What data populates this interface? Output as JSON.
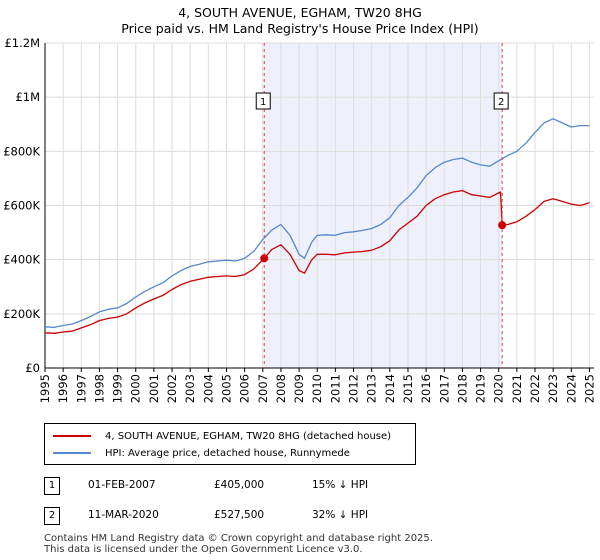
{
  "title_line1": "4, SOUTH AVENUE, EGHAM, TW20 8HG",
  "title_line2": "Price paid vs. HM Land Registry's House Price Index (HPI)",
  "chart_data": {
    "type": "line",
    "ylim": [
      0,
      1200000
    ],
    "xlim": [
      1995,
      2025.25
    ],
    "y_ticks": [
      0,
      200000,
      400000,
      600000,
      800000,
      1000000,
      1200000
    ],
    "y_tick_labels": [
      "£0",
      "£200K",
      "£400K",
      "£600K",
      "£800K",
      "£1M",
      "£1.2M"
    ],
    "x_ticks": [
      "1995",
      "1996",
      "1997",
      "1998",
      "1999",
      "2000",
      "2001",
      "2002",
      "2003",
      "2004",
      "2005",
      "2006",
      "2007",
      "2008",
      "2009",
      "2010",
      "2011",
      "2012",
      "2013",
      "2014",
      "2015",
      "2016",
      "2017",
      "2018",
      "2019",
      "2020",
      "2021",
      "2022",
      "2023",
      "2024",
      "2025"
    ],
    "grid": true,
    "shaded_region": [
      2007.08,
      2020.19
    ],
    "series": [
      {
        "name": "4, SOUTH AVENUE, EGHAM, TW20 8HG (detached house)",
        "color": "#cc0000",
        "x": [
          1995,
          1995.5,
          1996,
          1996.5,
          1997,
          1997.5,
          1998,
          1998.5,
          1999,
          1999.5,
          2000,
          2000.5,
          2001,
          2001.5,
          2002,
          2002.5,
          2003,
          2003.5,
          2004,
          2004.5,
          2005,
          2005.5,
          2006,
          2006.5,
          2007.08,
          2007.5,
          2008,
          2008.5,
          2009,
          2009.3,
          2009.7,
          2010,
          2010.5,
          2011,
          2011.5,
          2012,
          2012.5,
          2013,
          2013.5,
          2014,
          2014.5,
          2015,
          2015.5,
          2016,
          2016.5,
          2017,
          2017.5,
          2018,
          2018.5,
          2019,
          2019.5,
          2020.1,
          2020.19,
          2020.5,
          2021,
          2021.5,
          2022,
          2022.5,
          2023,
          2023.5,
          2024,
          2024.5,
          2025
        ],
        "y": [
          130000,
          128000,
          133000,
          136000,
          148000,
          160000,
          175000,
          183000,
          188000,
          200000,
          222000,
          240000,
          255000,
          268000,
          290000,
          308000,
          320000,
          328000,
          335000,
          338000,
          340000,
          338000,
          345000,
          365000,
          405000,
          438000,
          455000,
          420000,
          360000,
          350000,
          400000,
          420000,
          420000,
          418000,
          425000,
          428000,
          430000,
          435000,
          448000,
          470000,
          510000,
          535000,
          560000,
          600000,
          625000,
          640000,
          650000,
          655000,
          640000,
          635000,
          630000,
          650000,
          527500,
          530000,
          540000,
          560000,
          585000,
          615000,
          625000,
          615000,
          605000,
          600000,
          610000
        ]
      },
      {
        "name": "HPI: Average price, detached house, Runnymede",
        "color": "#5588cc",
        "x": [
          1995,
          1995.5,
          1996,
          1996.5,
          1997,
          1997.5,
          1998,
          1998.5,
          1999,
          1999.5,
          2000,
          2000.5,
          2001,
          2001.5,
          2002,
          2002.5,
          2003,
          2003.5,
          2004,
          2004.5,
          2005,
          2005.5,
          2006,
          2006.5,
          2007,
          2007.5,
          2008,
          2008.5,
          2009,
          2009.3,
          2009.7,
          2010,
          2010.5,
          2011,
          2011.5,
          2012,
          2012.5,
          2013,
          2013.5,
          2014,
          2014.5,
          2015,
          2015.5,
          2016,
          2016.5,
          2017,
          2017.5,
          2018,
          2018.5,
          2019,
          2019.5,
          2020,
          2020.5,
          2021,
          2021.5,
          2022,
          2022.5,
          2023,
          2023.5,
          2024,
          2024.5,
          2025
        ],
        "y": [
          152000,
          150000,
          157000,
          162000,
          175000,
          190000,
          207000,
          217000,
          222000,
          238000,
          262000,
          283000,
          300000,
          315000,
          340000,
          360000,
          375000,
          383000,
          392000,
          395000,
          398000,
          395000,
          405000,
          430000,
          475000,
          510000,
          530000,
          490000,
          420000,
          405000,
          465000,
          490000,
          492000,
          490000,
          500000,
          503000,
          508000,
          515000,
          530000,
          555000,
          600000,
          630000,
          665000,
          710000,
          740000,
          760000,
          770000,
          775000,
          760000,
          750000,
          745000,
          765000,
          785000,
          800000,
          830000,
          870000,
          905000,
          920000,
          905000,
          890000,
          895000,
          895000
        ]
      }
    ],
    "markers": [
      {
        "label": "1",
        "x": 2007.08,
        "y": 405000
      },
      {
        "label": "2",
        "x": 2020.19,
        "y": 527500
      }
    ]
  },
  "legend": [
    {
      "label": "4, SOUTH AVENUE, EGHAM, TW20 8HG (detached house)",
      "color": "#cc0000"
    },
    {
      "label": "HPI: Average price, detached house, Runnymede",
      "color": "#5588cc"
    }
  ],
  "sales": [
    {
      "num": "1",
      "date": "01-FEB-2007",
      "price": "£405,000",
      "hpi": "15% ↓ HPI"
    },
    {
      "num": "2",
      "date": "11-MAR-2020",
      "price": "£527,500",
      "hpi": "32% ↓ HPI"
    }
  ],
  "footer": {
    "line1": "Contains HM Land Registry data © Crown copyright and database right 2025.",
    "line2": "This data is licensed under the Open Government Licence v3.0."
  }
}
